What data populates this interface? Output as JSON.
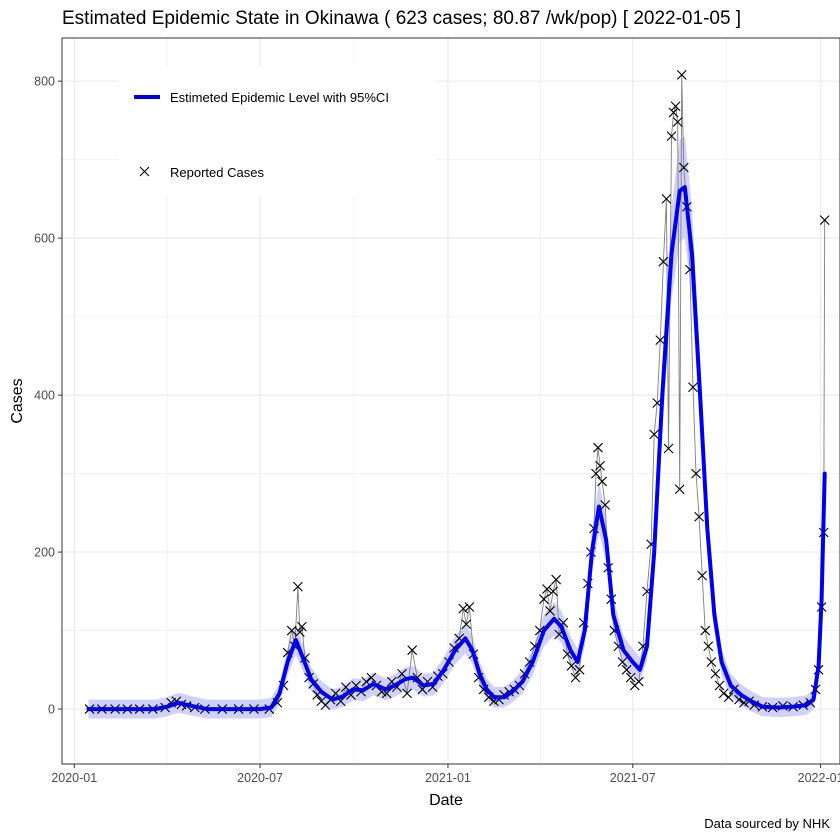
{
  "chart_data": {
    "type": "line",
    "title": "Estimated Epidemic State in Okinawa  ( 623 cases; 80.87 /wk/pop) [ 2022-01-05 ]",
    "xlabel": "Date",
    "ylabel": "Cases",
    "caption": "Data sourced by NHK",
    "xlim": [
      "2019-12-20",
      "2022-01-20"
    ],
    "ylim": [
      -70,
      855
    ],
    "x_ticks": [
      {
        "date": "2020-01-01",
        "label": "2020-01"
      },
      {
        "date": "2020-07-01",
        "label": "2020-07"
      },
      {
        "date": "2021-01-01",
        "label": "2021-01"
      },
      {
        "date": "2021-07-01",
        "label": "2021-07"
      },
      {
        "date": "2022-01-01",
        "label": "2022-01"
      }
    ],
    "y_ticks": [
      0,
      200,
      400,
      600,
      800
    ],
    "grid": true,
    "legend": {
      "position": "top-left",
      "entries": [
        {
          "label": "Estimeted Epidemic Level with 95%CI",
          "kind": "line",
          "color": "#0000ee"
        },
        {
          "label": "Reported Cases",
          "kind": "point",
          "color": "#000000"
        }
      ]
    },
    "colors": {
      "estimate": "#0000ee",
      "ci_band": "#c8c8f8",
      "reported_line": "#7f7f7f",
      "points": "#000000",
      "grid": "#ebebeb"
    },
    "series": [
      {
        "name": "Estimeted Epidemic Level with 95%CI",
        "kind": "estimate",
        "points": [
          [
            "2020-01-15",
            0
          ],
          [
            "2020-02-15",
            0
          ],
          [
            "2020-03-20",
            0
          ],
          [
            "2020-04-01",
            3
          ],
          [
            "2020-04-12",
            8
          ],
          [
            "2020-04-25",
            4
          ],
          [
            "2020-05-10",
            0
          ],
          [
            "2020-06-15",
            0
          ],
          [
            "2020-07-01",
            0
          ],
          [
            "2020-07-12",
            2
          ],
          [
            "2020-07-20",
            20
          ],
          [
            "2020-07-28",
            60
          ],
          [
            "2020-08-05",
            88
          ],
          [
            "2020-08-12",
            65
          ],
          [
            "2020-08-20",
            38
          ],
          [
            "2020-08-30",
            22
          ],
          [
            "2020-09-10",
            12
          ],
          [
            "2020-09-20",
            16
          ],
          [
            "2020-09-30",
            25
          ],
          [
            "2020-10-10",
            24
          ],
          [
            "2020-10-20",
            32
          ],
          [
            "2020-11-01",
            25
          ],
          [
            "2020-11-10",
            30
          ],
          [
            "2020-11-20",
            38
          ],
          [
            "2020-11-28",
            40
          ],
          [
            "2020-12-08",
            30
          ],
          [
            "2020-12-18",
            32
          ],
          [
            "2020-12-28",
            50
          ],
          [
            "2021-01-08",
            75
          ],
          [
            "2021-01-18",
            90
          ],
          [
            "2021-01-25",
            75
          ],
          [
            "2021-02-01",
            45
          ],
          [
            "2021-02-08",
            25
          ],
          [
            "2021-02-15",
            15
          ],
          [
            "2021-02-25",
            15
          ],
          [
            "2021-03-05",
            22
          ],
          [
            "2021-03-15",
            35
          ],
          [
            "2021-03-25",
            60
          ],
          [
            "2021-04-05",
            100
          ],
          [
            "2021-04-15",
            115
          ],
          [
            "2021-04-22",
            105
          ],
          [
            "2021-05-01",
            75
          ],
          [
            "2021-05-08",
            60
          ],
          [
            "2021-05-15",
            100
          ],
          [
            "2021-05-22",
            200
          ],
          [
            "2021-05-29",
            258
          ],
          [
            "2021-06-05",
            215
          ],
          [
            "2021-06-12",
            120
          ],
          [
            "2021-06-22",
            75
          ],
          [
            "2021-07-01",
            60
          ],
          [
            "2021-07-08",
            50
          ],
          [
            "2021-07-15",
            80
          ],
          [
            "2021-07-22",
            200
          ],
          [
            "2021-07-30",
            400
          ],
          [
            "2021-08-08",
            580
          ],
          [
            "2021-08-16",
            660
          ],
          [
            "2021-08-21",
            665
          ],
          [
            "2021-08-28",
            580
          ],
          [
            "2021-09-05",
            400
          ],
          [
            "2021-09-12",
            230
          ],
          [
            "2021-09-19",
            120
          ],
          [
            "2021-09-26",
            60
          ],
          [
            "2021-10-05",
            30
          ],
          [
            "2021-10-15",
            18
          ],
          [
            "2021-10-25",
            10
          ],
          [
            "2021-11-05",
            3
          ],
          [
            "2021-11-20",
            2
          ],
          [
            "2021-12-05",
            3
          ],
          [
            "2021-12-18",
            5
          ],
          [
            "2021-12-25",
            12
          ],
          [
            "2021-12-30",
            55
          ],
          [
            "2022-01-02",
            140
          ],
          [
            "2022-01-05",
            300
          ]
        ]
      },
      {
        "name": "Reported Cases",
        "kind": "reported",
        "points": [
          [
            "2020-01-16",
            0
          ],
          [
            "2020-01-28",
            0
          ],
          [
            "2020-02-10",
            0
          ],
          [
            "2020-02-22",
            0
          ],
          [
            "2020-03-05",
            0
          ],
          [
            "2020-03-18",
            0
          ],
          [
            "2020-03-30",
            2
          ],
          [
            "2020-04-05",
            8
          ],
          [
            "2020-04-10",
            10
          ],
          [
            "2020-04-15",
            6
          ],
          [
            "2020-04-20",
            4
          ],
          [
            "2020-04-28",
            2
          ],
          [
            "2020-05-08",
            0
          ],
          [
            "2020-05-25",
            0
          ],
          [
            "2020-06-10",
            0
          ],
          [
            "2020-06-25",
            0
          ],
          [
            "2020-07-10",
            0
          ],
          [
            "2020-07-18",
            8
          ],
          [
            "2020-07-24",
            30
          ],
          [
            "2020-07-28",
            72
          ],
          [
            "2020-08-01",
            100
          ],
          [
            "2020-08-04",
            80
          ],
          [
            "2020-08-07",
            156
          ],
          [
            "2020-08-09",
            98
          ],
          [
            "2020-08-11",
            105
          ],
          [
            "2020-08-14",
            65
          ],
          [
            "2020-08-18",
            40
          ],
          [
            "2020-08-22",
            32
          ],
          [
            "2020-08-26",
            18
          ],
          [
            "2020-08-30",
            10
          ],
          [
            "2020-09-03",
            5
          ],
          [
            "2020-09-08",
            12
          ],
          [
            "2020-09-13",
            20
          ],
          [
            "2020-09-18",
            10
          ],
          [
            "2020-09-23",
            28
          ],
          [
            "2020-09-28",
            18
          ],
          [
            "2020-10-03",
            30
          ],
          [
            "2020-10-08",
            22
          ],
          [
            "2020-10-13",
            35
          ],
          [
            "2020-10-18",
            40
          ],
          [
            "2020-10-23",
            30
          ],
          [
            "2020-10-28",
            22
          ],
          [
            "2020-11-02",
            20
          ],
          [
            "2020-11-07",
            35
          ],
          [
            "2020-11-12",
            28
          ],
          [
            "2020-11-17",
            45
          ],
          [
            "2020-11-22",
            20
          ],
          [
            "2020-11-27",
            75
          ],
          [
            "2020-12-02",
            40
          ],
          [
            "2020-12-07",
            25
          ],
          [
            "2020-12-12",
            35
          ],
          [
            "2020-12-17",
            28
          ],
          [
            "2020-12-22",
            42
          ],
          [
            "2020-12-27",
            45
          ],
          [
            "2021-01-02",
            60
          ],
          [
            "2021-01-07",
            78
          ],
          [
            "2021-01-12",
            90
          ],
          [
            "2021-01-16",
            128
          ],
          [
            "2021-01-19",
            108
          ],
          [
            "2021-01-22",
            130
          ],
          [
            "2021-01-26",
            70
          ],
          [
            "2021-01-31",
            40
          ],
          [
            "2021-02-05",
            25
          ],
          [
            "2021-02-10",
            15
          ],
          [
            "2021-02-15",
            10
          ],
          [
            "2021-02-20",
            12
          ],
          [
            "2021-02-25",
            18
          ],
          [
            "2021-03-02",
            22
          ],
          [
            "2021-03-07",
            25
          ],
          [
            "2021-03-12",
            30
          ],
          [
            "2021-03-17",
            45
          ],
          [
            "2021-03-22",
            60
          ],
          [
            "2021-03-27",
            80
          ],
          [
            "2021-04-01",
            100
          ],
          [
            "2021-04-05",
            140
          ],
          [
            "2021-04-08",
            153
          ],
          [
            "2021-04-11",
            125
          ],
          [
            "2021-04-14",
            150
          ],
          [
            "2021-04-17",
            165
          ],
          [
            "2021-04-20",
            95
          ],
          [
            "2021-04-24",
            110
          ],
          [
            "2021-04-28",
            70
          ],
          [
            "2021-05-02",
            55
          ],
          [
            "2021-05-06",
            40
          ],
          [
            "2021-05-10",
            50
          ],
          [
            "2021-05-14",
            110
          ],
          [
            "2021-05-18",
            160
          ],
          [
            "2021-05-21",
            200
          ],
          [
            "2021-05-24",
            230
          ],
          [
            "2021-05-26",
            300
          ],
          [
            "2021-05-28",
            333
          ],
          [
            "2021-05-30",
            310
          ],
          [
            "2021-06-01",
            290
          ],
          [
            "2021-06-04",
            260
          ],
          [
            "2021-06-07",
            180
          ],
          [
            "2021-06-10",
            140
          ],
          [
            "2021-06-13",
            100
          ],
          [
            "2021-06-17",
            80
          ],
          [
            "2021-06-21",
            60
          ],
          [
            "2021-06-25",
            50
          ],
          [
            "2021-06-29",
            40
          ],
          [
            "2021-07-03",
            30
          ],
          [
            "2021-07-07",
            35
          ],
          [
            "2021-07-11",
            80
          ],
          [
            "2021-07-15",
            150
          ],
          [
            "2021-07-19",
            210
          ],
          [
            "2021-07-22",
            350
          ],
          [
            "2021-07-25",
            390
          ],
          [
            "2021-07-28",
            470
          ],
          [
            "2021-07-31",
            570
          ],
          [
            "2021-08-03",
            650
          ],
          [
            "2021-08-05",
            332
          ],
          [
            "2021-08-08",
            730
          ],
          [
            "2021-08-10",
            760
          ],
          [
            "2021-08-12",
            768
          ],
          [
            "2021-08-14",
            748
          ],
          [
            "2021-08-16",
            280
          ],
          [
            "2021-08-18",
            808
          ],
          [
            "2021-08-20",
            690
          ],
          [
            "2021-08-23",
            640
          ],
          [
            "2021-08-26",
            560
          ],
          [
            "2021-08-29",
            410
          ],
          [
            "2021-09-01",
            300
          ],
          [
            "2021-09-04",
            245
          ],
          [
            "2021-09-07",
            170
          ],
          [
            "2021-09-10",
            100
          ],
          [
            "2021-09-13",
            80
          ],
          [
            "2021-09-16",
            60
          ],
          [
            "2021-09-20",
            45
          ],
          [
            "2021-09-24",
            30
          ],
          [
            "2021-09-28",
            20
          ],
          [
            "2021-10-03",
            15
          ],
          [
            "2021-10-08",
            25
          ],
          [
            "2021-10-13",
            12
          ],
          [
            "2021-10-18",
            8
          ],
          [
            "2021-10-23",
            10
          ],
          [
            "2021-10-28",
            5
          ],
          [
            "2021-11-05",
            3
          ],
          [
            "2021-11-15",
            2
          ],
          [
            "2021-11-25",
            4
          ],
          [
            "2021-12-05",
            3
          ],
          [
            "2021-12-15",
            5
          ],
          [
            "2021-12-22",
            8
          ],
          [
            "2021-12-27",
            25
          ],
          [
            "2021-12-30",
            50
          ],
          [
            "2022-01-02",
            130
          ],
          [
            "2022-01-04",
            225
          ],
          [
            "2022-01-05",
            623
          ]
        ]
      }
    ]
  }
}
